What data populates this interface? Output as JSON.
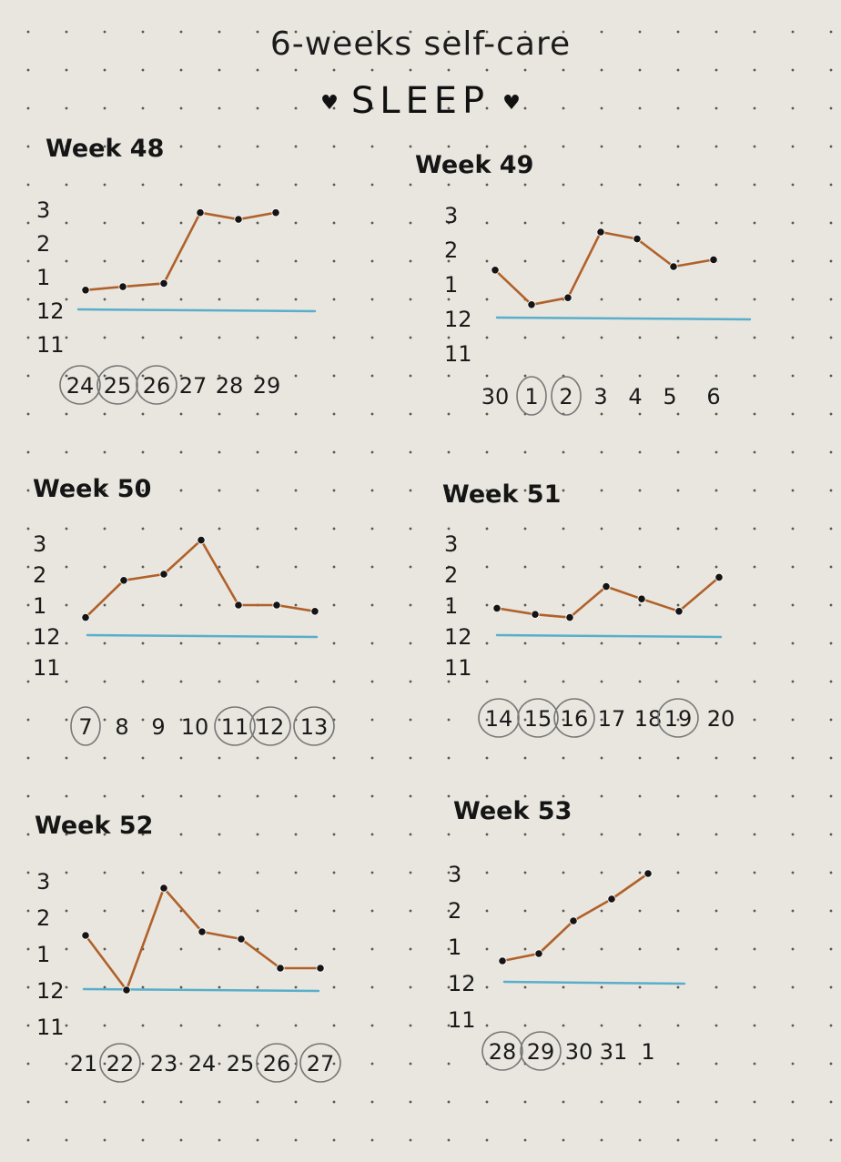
{
  "title": "6-weeks self-care",
  "subtitle": "SLEEP",
  "heart_glyph": "♥",
  "colors": {
    "line": "#b0612a",
    "baseline": "#58aecb",
    "point": "#141414",
    "circle": "#777777"
  },
  "chart_data": [
    {
      "type": "line",
      "title": "Week 48",
      "y_tick_labels": [
        "3",
        "2",
        "1",
        "12",
        "11"
      ],
      "baseline_label": "12",
      "categories": [
        "24",
        "25",
        "26",
        "27",
        "28",
        "29"
      ],
      "circled": [
        "24",
        "25",
        "26"
      ],
      "values": [
        0.6,
        0.7,
        0.8,
        2.9,
        2.7,
        2.9
      ],
      "segments": [
        [
          0,
          5
        ]
      ]
    },
    {
      "type": "line",
      "title": "Week 49",
      "y_tick_labels": [
        "3",
        "2",
        "1",
        "12",
        "11"
      ],
      "baseline_label": "12",
      "categories": [
        "30",
        "1",
        "2",
        "3",
        "4",
        "5",
        "6"
      ],
      "circled": [
        "1",
        "2"
      ],
      "values": [
        1.4,
        0.4,
        0.6,
        2.5,
        2.3,
        1.5,
        1.7
      ],
      "segments": [
        [
          0,
          1
        ],
        [
          1,
          2
        ],
        [
          2,
          6
        ]
      ]
    },
    {
      "type": "line",
      "title": "Week 50",
      "y_tick_labels": [
        "3",
        "2",
        "1",
        "12",
        "11"
      ],
      "baseline_label": "12",
      "categories": [
        "7",
        "8",
        "9",
        "10",
        "11",
        "12",
        "13"
      ],
      "circled": [
        "7",
        "11",
        "12",
        "13"
      ],
      "values": [
        0.6,
        1.8,
        2.0,
        3.1,
        1.0,
        1.0,
        0.8
      ],
      "segments": [
        [
          0,
          3
        ],
        [
          3,
          6
        ]
      ]
    },
    {
      "type": "line",
      "title": "Week 51",
      "y_tick_labels": [
        "3",
        "2",
        "1",
        "12",
        "11"
      ],
      "baseline_label": "12",
      "categories": [
        "14",
        "15",
        "16",
        "17",
        "18",
        "19",
        "20"
      ],
      "circled": [
        "14",
        "15",
        "16",
        "19"
      ],
      "values": [
        0.9,
        0.7,
        0.6,
        1.6,
        1.2,
        0.8,
        1.9
      ],
      "segments": [
        [
          0,
          3
        ],
        [
          3,
          6
        ]
      ]
    },
    {
      "type": "line",
      "title": "Week 52",
      "y_tick_labels": [
        "3",
        "2",
        "1",
        "12",
        "11"
      ],
      "baseline_label": "12",
      "categories": [
        "21",
        "22",
        "23",
        "24",
        "25",
        "26",
        "27"
      ],
      "circled": [
        "22",
        "26",
        "27"
      ],
      "values": [
        1.5,
        0.0,
        2.8,
        1.6,
        1.4,
        0.6,
        0.6
      ],
      "segments": [
        [
          0,
          1
        ],
        [
          1,
          2
        ],
        [
          2,
          3
        ],
        [
          3,
          6
        ]
      ]
    },
    {
      "type": "line",
      "title": "Week 53",
      "y_tick_labels": [
        "3",
        "2",
        "1",
        "12",
        "11"
      ],
      "baseline_label": "12",
      "categories": [
        "28",
        "29",
        "30",
        "31",
        "1"
      ],
      "circled": [
        "28",
        "29"
      ],
      "values": [
        0.6,
        0.8,
        1.7,
        2.3,
        3.0
      ],
      "segments": [
        [
          0,
          4
        ]
      ]
    }
  ]
}
